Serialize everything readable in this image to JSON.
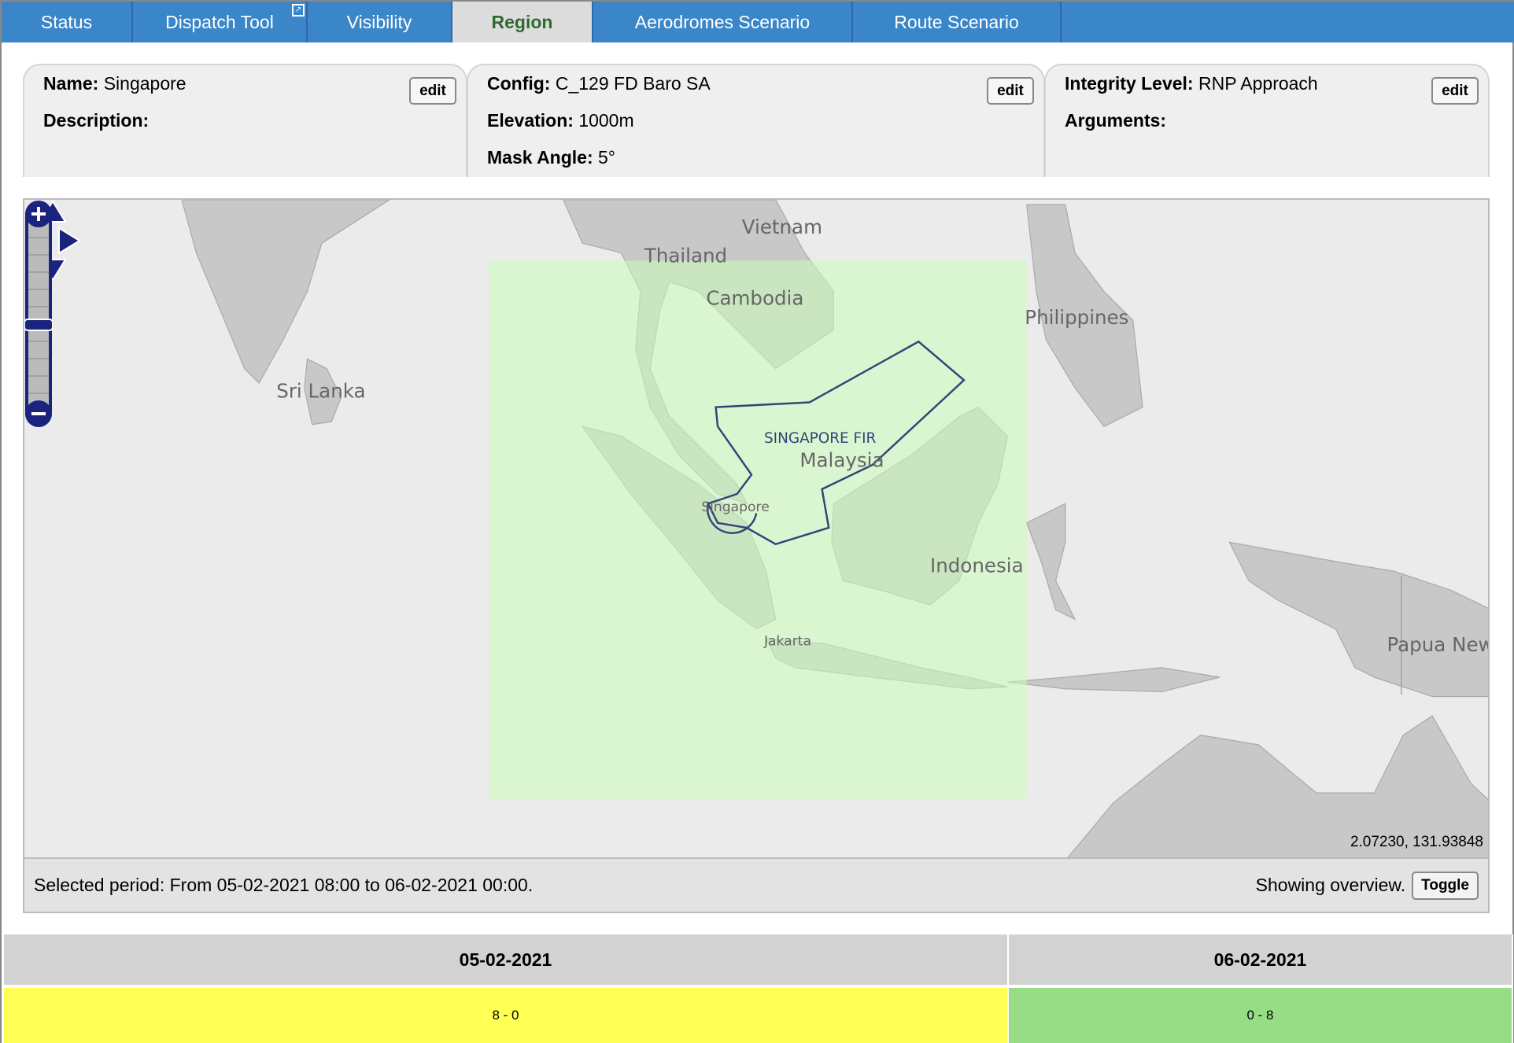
{
  "tabs": [
    {
      "label": "Status"
    },
    {
      "label": "Dispatch Tool",
      "external": true
    },
    {
      "label": "Visibility"
    },
    {
      "label": "Region",
      "active": true
    },
    {
      "label": "Aerodromes Scenario"
    },
    {
      "label": "Route Scenario"
    }
  ],
  "region": {
    "name_label": "Name:",
    "name": "Singapore",
    "description_label": "Description:",
    "description": "",
    "edit": "edit"
  },
  "config": {
    "config_label": "Config:",
    "config": "C_129 FD Baro SA",
    "elevation_label": "Elevation:",
    "elevation": "1000m",
    "mask_label": "Mask Angle:",
    "mask": "5°",
    "edit": "edit"
  },
  "integrity": {
    "level_label": "Integrity Level:",
    "level": "RNP Approach",
    "arguments_label": "Arguments:",
    "arguments": "",
    "edit": "edit"
  },
  "map": {
    "labels": {
      "vietnam": "Vietnam",
      "thailand": "Thailand",
      "cambodia": "Cambodia",
      "philippines": "Philippines",
      "srilanka": "Sri Lanka",
      "malaysia": "Malaysia",
      "singapore": "Singapore",
      "indonesia": "Indonesia",
      "jakarta": "Jakarta",
      "papua": "Papua New",
      "fir": "SINGAPORE FIR"
    },
    "coordinates": "2.07230, 131.93848",
    "land_color": "#c8c8c8",
    "sea_color": "#ebebeb",
    "coverage_color": "#ccffbb",
    "fir_color": "#334477"
  },
  "status": {
    "period": "Selected period: From 05-02-2021 08:00 to 06-02-2021 00:00.",
    "overview": "Showing overview.",
    "toggle": "Toggle"
  },
  "timeline": {
    "headers": [
      "05-02-2021",
      "06-02-2021"
    ],
    "cells": [
      {
        "value": "8 - 0",
        "color": "#ffff55"
      },
      {
        "value": "0 - 8",
        "color": "#96dd86"
      }
    ]
  }
}
